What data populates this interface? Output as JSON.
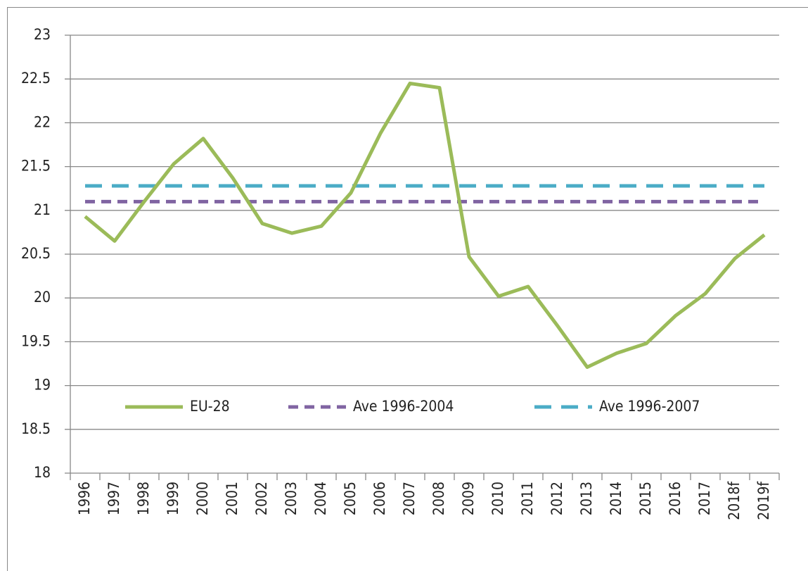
{
  "chart_data": {
    "type": "line",
    "categories": [
      "1996",
      "1997",
      "1998",
      "1999",
      "2000",
      "2001",
      "2002",
      "2003",
      "2004",
      "2005",
      "2006",
      "2007",
      "2008",
      "2009",
      "2010",
      "2011",
      "2012",
      "2013",
      "2014",
      "2015",
      "2016",
      "2017",
      "2018f",
      "2019f"
    ],
    "series": [
      {
        "name": "EU-28",
        "color": "#9bbb59",
        "dash": "solid",
        "values": [
          20.93,
          20.65,
          21.1,
          21.53,
          21.82,
          21.37,
          20.85,
          20.74,
          20.82,
          21.2,
          21.88,
          22.45,
          22.4,
          20.47,
          20.02,
          20.13,
          19.68,
          19.21,
          19.37,
          19.48,
          19.8,
          20.05,
          20.45,
          20.72
        ]
      },
      {
        "name": "Ave 1996-2004",
        "color": "#8064a2",
        "dash": "short",
        "values": [
          21.1,
          21.1,
          21.1,
          21.1,
          21.1,
          21.1,
          21.1,
          21.1,
          21.1,
          21.1,
          21.1,
          21.1,
          21.1,
          21.1,
          21.1,
          21.1,
          21.1,
          21.1,
          21.1,
          21.1,
          21.1,
          21.1,
          21.1,
          21.1
        ]
      },
      {
        "name": "Ave 1996-2007",
        "color": "#4bacc6",
        "dash": "long",
        "values": [
          21.28,
          21.28,
          21.28,
          21.28,
          21.28,
          21.28,
          21.28,
          21.28,
          21.28,
          21.28,
          21.28,
          21.28,
          21.28,
          21.28,
          21.28,
          21.28,
          21.28,
          21.28,
          21.28,
          21.28,
          21.28,
          21.28,
          21.28,
          21.28
        ]
      }
    ],
    "ylim": [
      18,
      23
    ],
    "yticks": [
      18,
      18.5,
      19,
      19.5,
      20,
      20.5,
      21,
      21.5,
      22,
      22.5,
      23
    ],
    "grid": true,
    "legend": "lower-center"
  }
}
